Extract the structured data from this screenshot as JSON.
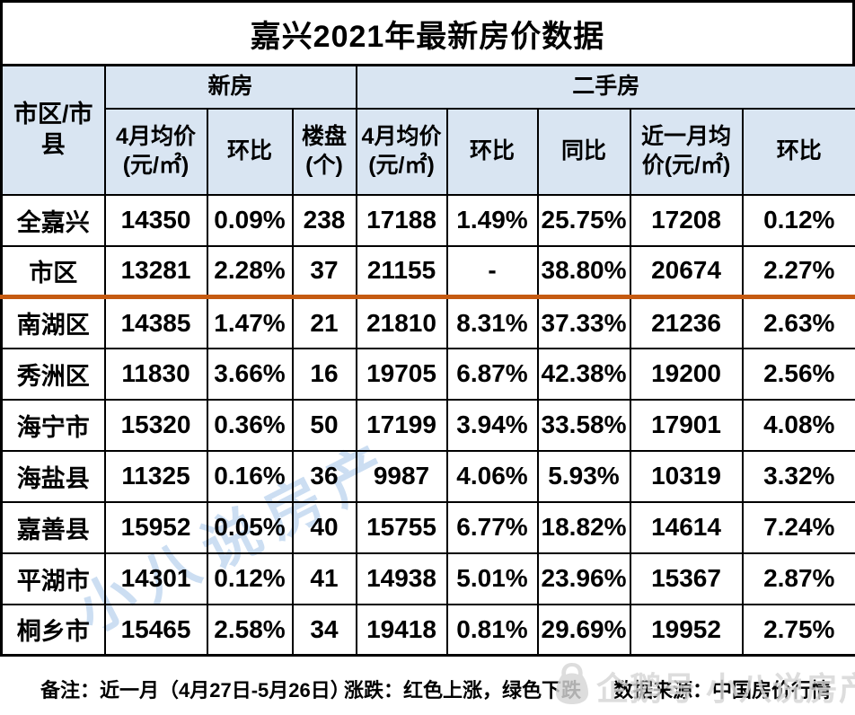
{
  "title": "嘉兴2021年最新房价数据",
  "table": {
    "corner_header": "市区/市县",
    "group_headers": [
      {
        "label": "新房"
      },
      {
        "label": "二手房"
      }
    ],
    "sub_headers": [
      "4月均价(元/㎡)",
      "环比",
      "楼盘(个)",
      "4月均价(元/㎡)",
      "环比",
      "同比",
      "近一月均价(元/㎡)",
      "环比"
    ],
    "rows": [
      {
        "region": "全嘉兴",
        "cells": [
          {
            "t": "14350",
            "c": "black"
          },
          {
            "t": "0.09%",
            "c": "green"
          },
          {
            "t": "238",
            "c": "black"
          },
          {
            "t": "17188",
            "c": "black"
          },
          {
            "t": "1.49%",
            "c": "red"
          },
          {
            "t": "25.75%",
            "c": "red"
          },
          {
            "t": "17208",
            "c": "black"
          },
          {
            "t": "0.12%",
            "c": "red"
          }
        ]
      },
      {
        "region": "市区",
        "separator_below": true,
        "cells": [
          {
            "t": "13281",
            "c": "black"
          },
          {
            "t": "2.28%",
            "c": "green"
          },
          {
            "t": "37",
            "c": "black"
          },
          {
            "t": "21155",
            "c": "black"
          },
          {
            "t": "-",
            "c": "black"
          },
          {
            "t": "38.80%",
            "c": "red"
          },
          {
            "t": "20674",
            "c": "black"
          },
          {
            "t": "2.27%",
            "c": "green"
          }
        ]
      },
      {
        "region": "南湖区",
        "cells": [
          {
            "t": "14385",
            "c": "black"
          },
          {
            "t": "1.47%",
            "c": "green"
          },
          {
            "t": "21",
            "c": "black"
          },
          {
            "t": "21810",
            "c": "black"
          },
          {
            "t": "8.31%",
            "c": "red"
          },
          {
            "t": "37.33%",
            "c": "red"
          },
          {
            "t": "21236",
            "c": "black"
          },
          {
            "t": "2.63%",
            "c": "green"
          }
        ]
      },
      {
        "region": "秀洲区",
        "cells": [
          {
            "t": "11830",
            "c": "black"
          },
          {
            "t": "3.66%",
            "c": "green"
          },
          {
            "t": "16",
            "c": "black"
          },
          {
            "t": "19705",
            "c": "black"
          },
          {
            "t": "6.87%",
            "c": "red"
          },
          {
            "t": "42.38%",
            "c": "red"
          },
          {
            "t": "19200",
            "c": "black"
          },
          {
            "t": "2.56%",
            "c": "green"
          }
        ]
      },
      {
        "region": "海宁市",
        "cells": [
          {
            "t": "15320",
            "c": "black"
          },
          {
            "t": "0.36%",
            "c": "red"
          },
          {
            "t": "50",
            "c": "black"
          },
          {
            "t": "17199",
            "c": "black"
          },
          {
            "t": "3.94%",
            "c": "red"
          },
          {
            "t": "33.58%",
            "c": "red"
          },
          {
            "t": "17901",
            "c": "black"
          },
          {
            "t": "4.08%",
            "c": "red"
          }
        ]
      },
      {
        "region": "海盐县",
        "cells": [
          {
            "t": "11325",
            "c": "black"
          },
          {
            "t": "0.16%",
            "c": "green"
          },
          {
            "t": "36",
            "c": "black"
          },
          {
            "t": "9987",
            "c": "black"
          },
          {
            "t": "4.06%",
            "c": "green"
          },
          {
            "t": "5.93%",
            "c": "red"
          },
          {
            "t": "10319",
            "c": "black"
          },
          {
            "t": "3.32%",
            "c": "red"
          }
        ]
      },
      {
        "region": "嘉善县",
        "cells": [
          {
            "t": "15952",
            "c": "black"
          },
          {
            "t": "0.05%",
            "c": "green"
          },
          {
            "t": "40",
            "c": "black"
          },
          {
            "t": "15755",
            "c": "black"
          },
          {
            "t": "6.77%",
            "c": "red"
          },
          {
            "t": "18.82%",
            "c": "red"
          },
          {
            "t": "14614",
            "c": "black"
          },
          {
            "t": "7.24%",
            "c": "green"
          }
        ]
      },
      {
        "region": "平湖市",
        "cells": [
          {
            "t": "14301",
            "c": "black"
          },
          {
            "t": "0.12%",
            "c": "green"
          },
          {
            "t": "41",
            "c": "black"
          },
          {
            "t": "14938",
            "c": "black"
          },
          {
            "t": "5.01%",
            "c": "green"
          },
          {
            "t": "23.96%",
            "c": "red"
          },
          {
            "t": "15367",
            "c": "black"
          },
          {
            "t": "2.87%",
            "c": "red"
          }
        ]
      },
      {
        "region": "桐乡市",
        "cells": [
          {
            "t": "15465",
            "c": "black"
          },
          {
            "t": "2.58%",
            "c": "red"
          },
          {
            "t": "34",
            "c": "black"
          },
          {
            "t": "19418",
            "c": "black"
          },
          {
            "t": "0.81%",
            "c": "red"
          },
          {
            "t": "29.69%",
            "c": "red"
          },
          {
            "t": "19952",
            "c": "black"
          },
          {
            "t": "2.75%",
            "c": "red"
          }
        ]
      }
    ]
  },
  "footer": {
    "note_left": "备注：近一月（4月27日-5月26日）",
    "note_mid": "涨跌：红色上涨，绿色下跌",
    "note_right": "数据来源：中国房价行情"
  },
  "watermarks": {
    "diagonal": "小八说房产",
    "corner": "企鹅号 小八说房产"
  },
  "colors": {
    "header_bg": "#D9E5F2",
    "up_red": "#FF0000",
    "down_green": "#00B050",
    "separator_orange": "#C55A11",
    "watermark_blue": "#BBD3EE",
    "watermark_gray": "#D6D6D6",
    "border": "#000000"
  }
}
